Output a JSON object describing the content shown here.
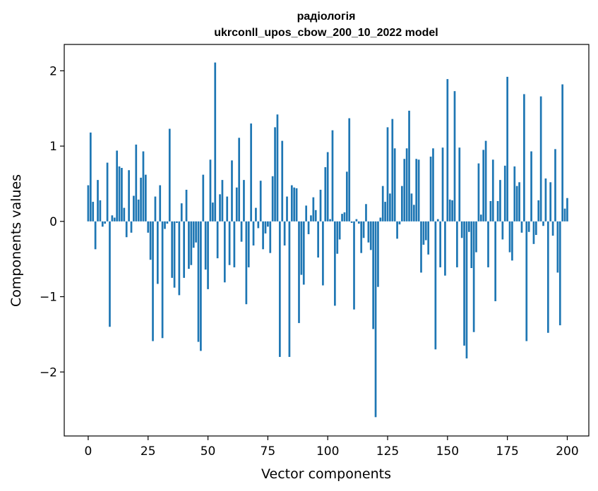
{
  "chart_data": {
    "type": "bar",
    "title": "радіологія",
    "subtitle": "ukrconll_upos_cbow_200_10_2022 model",
    "xlabel": "Vector components",
    "ylabel": "Components values",
    "xlim": [
      -10,
      209
    ],
    "ylim": [
      -2.85,
      2.35
    ],
    "xticks": [
      0,
      25,
      50,
      75,
      100,
      125,
      150,
      175,
      200
    ],
    "yticks": [
      -2,
      -1,
      0,
      1,
      2
    ],
    "grid": false,
    "bar_color": "#1f77b4",
    "values": [
      0.48,
      1.18,
      0.26,
      -0.37,
      0.55,
      0.28,
      -0.07,
      -0.03,
      0.78,
      -1.4,
      0.08,
      0.05,
      0.94,
      0.73,
      0.71,
      0.18,
      -0.21,
      0.68,
      -0.15,
      0.34,
      1.02,
      0.29,
      0.58,
      0.93,
      0.62,
      -0.15,
      -0.51,
      -1.59,
      0.33,
      -0.83,
      0.48,
      -1.55,
      -0.1,
      -0.03,
      1.23,
      -0.75,
      -0.88,
      -0.02,
      -0.98,
      0.24,
      -0.75,
      0.42,
      -0.63,
      -0.58,
      -0.35,
      -0.28,
      -1.6,
      -1.72,
      0.62,
      -0.64,
      -0.9,
      0.82,
      0.25,
      2.11,
      -0.49,
      0.36,
      0.55,
      -0.81,
      0.33,
      -0.58,
      0.81,
      -0.61,
      0.45,
      1.11,
      -0.27,
      0.55,
      -1.1,
      -0.61,
      1.3,
      -0.32,
      0.18,
      -0.09,
      0.54,
      -0.37,
      -0.16,
      -0.07,
      -0.42,
      0.6,
      1.25,
      1.42,
      -1.8,
      1.07,
      -0.32,
      0.33,
      -1.8,
      0.48,
      0.45,
      0.44,
      -1.35,
      -0.71,
      -0.84,
      0.21,
      -0.17,
      0.08,
      0.32,
      0.15,
      -0.48,
      0.42,
      -0.85,
      0.72,
      0.92,
      0.03,
      1.21,
      -1.12,
      -0.43,
      -0.24,
      0.1,
      0.12,
      0.66,
      1.37,
      -0.02,
      -1.17,
      0.03,
      -0.03,
      -0.42,
      -0.22,
      0.23,
      -0.28,
      -0.38,
      -1.43,
      -2.6,
      -0.87,
      0.05,
      0.47,
      0.26,
      1.25,
      0.37,
      1.36,
      0.97,
      -0.23,
      -0.04,
      0.47,
      0.83,
      0.97,
      1.47,
      0.37,
      0.22,
      0.83,
      0.82,
      -0.68,
      -0.31,
      -0.25,
      -0.44,
      0.86,
      0.97,
      -1.7,
      0.03,
      -0.61,
      0.98,
      -0.72,
      1.89,
      0.29,
      0.28,
      1.73,
      -0.61,
      0.98,
      -0.22,
      -1.65,
      -1.82,
      -0.14,
      -0.62,
      -1.47,
      -0.41,
      0.77,
      0.09,
      0.95,
      1.07,
      -0.61,
      0.27,
      0.82,
      -1.06,
      0.27,
      0.55,
      -0.24,
      0.74,
      1.92,
      -0.41,
      -0.52,
      0.73,
      0.47,
      0.52,
      -0.15,
      1.69,
      -1.59,
      -0.14,
      0.93,
      -0.3,
      -0.18,
      0.28,
      1.66,
      -0.06,
      0.57,
      -1.48,
      0.52,
      -0.19,
      0.96,
      -0.68,
      -1.38,
      1.82,
      0.17,
      0.31
    ]
  }
}
